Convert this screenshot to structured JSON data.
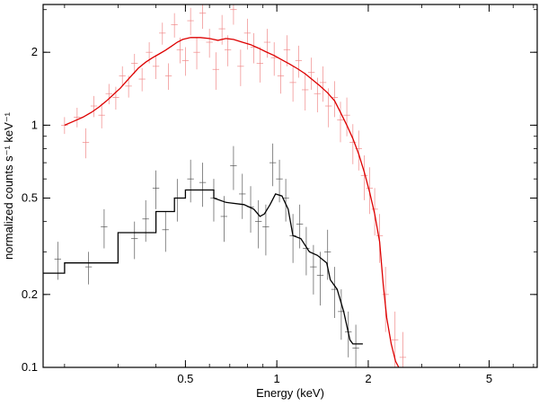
{
  "chart_data": {
    "type": "line",
    "xlabel": "Energy (keV)",
    "ylabel": "normalized counts s⁻¹ keV⁻¹",
    "x_scale": "log",
    "y_scale": "log",
    "xlim": [
      0.17,
      7.2
    ],
    "ylim": [
      0.1,
      3.15
    ],
    "x_ticks": [
      {
        "value": 0.5,
        "label": "0.5"
      },
      {
        "value": 1,
        "label": "1"
      },
      {
        "value": 2,
        "label": "2"
      },
      {
        "value": 5,
        "label": "5"
      }
    ],
    "y_ticks": [
      {
        "value": 0.1,
        "label": "0.1"
      },
      {
        "value": 0.2,
        "label": "0.2"
      },
      {
        "value": 0.5,
        "label": "0.5"
      },
      {
        "value": 1,
        "label": "1"
      },
      {
        "value": 2,
        "label": "2"
      }
    ],
    "grid": false,
    "series": [
      {
        "color": "#dd0000",
        "data_color": "#f08888",
        "model": [
          [
            0.2,
            1.0
          ],
          [
            0.215,
            1.04
          ],
          [
            0.23,
            1.08
          ],
          [
            0.245,
            1.13
          ],
          [
            0.26,
            1.19
          ],
          [
            0.275,
            1.26
          ],
          [
            0.29,
            1.34
          ],
          [
            0.305,
            1.42
          ],
          [
            0.32,
            1.52
          ],
          [
            0.335,
            1.62
          ],
          [
            0.35,
            1.72
          ],
          [
            0.37,
            1.82
          ],
          [
            0.39,
            1.9
          ],
          [
            0.41,
            1.97
          ],
          [
            0.43,
            2.04
          ],
          [
            0.45,
            2.12
          ],
          [
            0.47,
            2.2
          ],
          [
            0.49,
            2.26
          ],
          [
            0.52,
            2.3
          ],
          [
            0.56,
            2.3
          ],
          [
            0.6,
            2.28
          ],
          [
            0.64,
            2.24
          ],
          [
            0.68,
            2.28
          ],
          [
            0.72,
            2.26
          ],
          [
            0.77,
            2.2
          ],
          [
            0.82,
            2.15
          ],
          [
            0.87,
            2.08
          ],
          [
            0.92,
            2.01
          ],
          [
            0.98,
            1.94
          ],
          [
            1.04,
            1.86
          ],
          [
            1.1,
            1.79
          ],
          [
            1.17,
            1.71
          ],
          [
            1.24,
            1.63
          ],
          [
            1.31,
            1.54
          ],
          [
            1.39,
            1.45
          ],
          [
            1.47,
            1.36
          ],
          [
            1.55,
            1.26
          ],
          [
            1.62,
            1.13
          ],
          [
            1.7,
            1.0
          ],
          [
            1.78,
            0.88
          ],
          [
            1.86,
            0.76
          ],
          [
            1.94,
            0.64
          ],
          [
            2.02,
            0.53
          ],
          [
            2.1,
            0.43
          ],
          [
            2.18,
            0.33
          ],
          [
            2.24,
            0.22
          ],
          [
            2.3,
            0.16
          ],
          [
            2.38,
            0.125
          ],
          [
            2.46,
            0.106
          ],
          [
            2.52,
            0.1
          ]
        ],
        "data": [
          [
            0.2,
            1.0,
            0.08
          ],
          [
            0.22,
            1.08,
            0.1
          ],
          [
            0.235,
            0.85,
            0.12
          ],
          [
            0.25,
            1.2,
            0.12
          ],
          [
            0.265,
            1.1,
            0.13
          ],
          [
            0.28,
            1.35,
            0.13
          ],
          [
            0.295,
            1.3,
            0.14
          ],
          [
            0.31,
            1.6,
            0.15
          ],
          [
            0.325,
            1.45,
            0.15
          ],
          [
            0.34,
            1.8,
            0.17
          ],
          [
            0.36,
            1.55,
            0.17
          ],
          [
            0.38,
            2.0,
            0.2
          ],
          [
            0.4,
            1.75,
            0.2
          ],
          [
            0.42,
            2.4,
            0.25
          ],
          [
            0.44,
            1.6,
            0.2
          ],
          [
            0.46,
            2.6,
            0.3
          ],
          [
            0.48,
            2.05,
            0.25
          ],
          [
            0.5,
            1.85,
            0.25
          ],
          [
            0.52,
            2.7,
            0.35
          ],
          [
            0.545,
            2.0,
            0.3
          ],
          [
            0.57,
            2.9,
            0.4
          ],
          [
            0.6,
            2.2,
            0.3
          ],
          [
            0.63,
            1.7,
            0.3
          ],
          [
            0.66,
            2.5,
            0.35
          ],
          [
            0.69,
            2.05,
            0.3
          ],
          [
            0.72,
            3.0,
            0.4
          ],
          [
            0.76,
            1.75,
            0.3
          ],
          [
            0.8,
            2.4,
            0.35
          ],
          [
            0.84,
            2.1,
            0.3
          ],
          [
            0.88,
            1.8,
            0.3
          ],
          [
            0.93,
            2.2,
            0.3
          ],
          [
            0.98,
            1.9,
            0.3
          ],
          [
            1.03,
            1.6,
            0.25
          ],
          [
            1.08,
            2.05,
            0.3
          ],
          [
            1.13,
            1.5,
            0.25
          ],
          [
            1.18,
            1.85,
            0.28
          ],
          [
            1.24,
            1.4,
            0.25
          ],
          [
            1.3,
            1.65,
            0.25
          ],
          [
            1.36,
            1.35,
            0.22
          ],
          [
            1.42,
            1.5,
            0.25
          ],
          [
            1.48,
            1.2,
            0.22
          ],
          [
            1.55,
            1.3,
            0.22
          ],
          [
            1.62,
            1.05,
            0.2
          ],
          [
            1.7,
            1.1,
            0.2
          ],
          [
            1.78,
            0.85,
            0.16
          ],
          [
            1.86,
            0.8,
            0.15
          ],
          [
            1.94,
            0.62,
            0.13
          ],
          [
            2.02,
            0.55,
            0.12
          ],
          [
            2.1,
            0.45,
            0.1
          ],
          [
            2.18,
            0.35,
            0.08
          ],
          [
            2.28,
            0.2,
            0.06
          ],
          [
            2.45,
            0.13,
            0.04
          ],
          [
            2.6,
            0.11,
            0.03
          ]
        ]
      },
      {
        "color": "#000000",
        "data_color": "#555555",
        "model": [
          [
            0.17,
            0.245
          ],
          [
            0.2,
            0.245
          ],
          [
            0.2,
            0.27
          ],
          [
            0.3,
            0.27
          ],
          [
            0.3,
            0.36
          ],
          [
            0.4,
            0.36
          ],
          [
            0.4,
            0.44
          ],
          [
            0.46,
            0.44
          ],
          [
            0.46,
            0.5
          ],
          [
            0.5,
            0.5
          ],
          [
            0.5,
            0.54
          ],
          [
            0.62,
            0.54
          ],
          [
            0.62,
            0.5
          ],
          [
            0.68,
            0.48
          ],
          [
            0.78,
            0.47
          ],
          [
            0.84,
            0.45
          ],
          [
            0.88,
            0.42
          ],
          [
            0.91,
            0.43
          ],
          [
            0.95,
            0.47
          ],
          [
            0.99,
            0.52
          ],
          [
            1.04,
            0.51
          ],
          [
            1.09,
            0.45
          ],
          [
            1.13,
            0.35
          ],
          [
            1.2,
            0.34
          ],
          [
            1.28,
            0.3
          ],
          [
            1.36,
            0.29
          ],
          [
            1.46,
            0.27
          ],
          [
            1.5,
            0.23
          ],
          [
            1.58,
            0.21
          ],
          [
            1.66,
            0.17
          ],
          [
            1.74,
            0.13
          ],
          [
            1.78,
            0.125
          ],
          [
            1.92,
            0.125
          ]
        ],
        "data": [
          [
            0.19,
            0.28,
            0.05
          ],
          [
            0.24,
            0.26,
            0.04
          ],
          [
            0.27,
            0.38,
            0.07
          ],
          [
            0.34,
            0.34,
            0.06
          ],
          [
            0.37,
            0.41,
            0.08
          ],
          [
            0.4,
            0.55,
            0.1
          ],
          [
            0.43,
            0.37,
            0.07
          ],
          [
            0.47,
            0.5,
            0.1
          ],
          [
            0.52,
            0.6,
            0.12
          ],
          [
            0.57,
            0.58,
            0.12
          ],
          [
            0.62,
            0.5,
            0.1
          ],
          [
            0.67,
            0.42,
            0.09
          ],
          [
            0.72,
            0.68,
            0.14
          ],
          [
            0.77,
            0.52,
            0.11
          ],
          [
            0.82,
            0.46,
            0.1
          ],
          [
            0.87,
            0.4,
            0.09
          ],
          [
            0.92,
            0.38,
            0.09
          ],
          [
            0.97,
            0.7,
            0.14
          ],
          [
            1.02,
            0.6,
            0.12
          ],
          [
            1.07,
            0.5,
            0.1
          ],
          [
            1.13,
            0.35,
            0.08
          ],
          [
            1.19,
            0.39,
            0.08
          ],
          [
            1.25,
            0.31,
            0.07
          ],
          [
            1.32,
            0.26,
            0.06
          ],
          [
            1.39,
            0.24,
            0.06
          ],
          [
            1.47,
            0.3,
            0.07
          ],
          [
            1.55,
            0.21,
            0.05
          ],
          [
            1.63,
            0.17,
            0.04
          ],
          [
            1.72,
            0.14,
            0.03
          ],
          [
            1.82,
            0.12,
            0.03
          ]
        ]
      }
    ]
  }
}
